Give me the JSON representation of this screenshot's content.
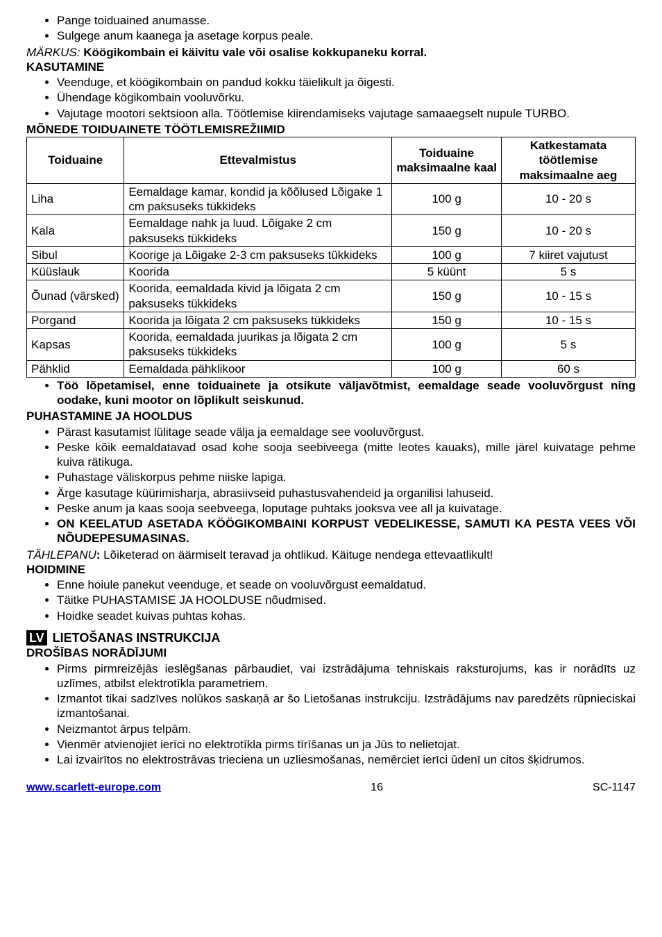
{
  "top_bullets": [
    "Pange toiduained anumasse.",
    "Sulgege anum kaanega ja asetage korpus peale."
  ],
  "markus_line": {
    "prefix": "MÄRKUS:",
    "text": " Köögikombain ei käivitu vale või osalise  kokkupaneku korral."
  },
  "kasutamine_heading": "KASUTAMINE",
  "kasutamine_bullets": [
    "Veenduge, et köögikombain on pandud kokku täielikult ja õigesti.",
    "Ühendage kögikombain vooluvõrku.",
    "Vajutage mootori sektsioon alla. Töötlemise kiirendamiseks vajutage samaaegselt nupule TURBO."
  ],
  "table_heading": "MÕNEDE TOIDUAINETE TÖÖTLEMISREŽIIMID",
  "table": {
    "headers": [
      "Toiduaine",
      "Ettevalmistus",
      "Toiduaine maksimaalne kaal",
      "Katkestamata töötlemise maksimaalne aeg"
    ],
    "col_widths": [
      "16%",
      "44%",
      "18%",
      "22%"
    ],
    "header_bg": "#ffffff",
    "border_color": "#000000",
    "rows": [
      [
        "Liha",
        "Eemaldage kamar, kondid ja kõõlused Lõigake 1 cm paksuseks tükkideks",
        "100 g",
        "10 - 20 s"
      ],
      [
        "Kala",
        "Eemaldage nahk ja luud. Lõigake 2 cm paksuseks tükkideks",
        "150 g",
        "10 - 20 s"
      ],
      [
        "Sibul",
        "Koorige ja Lõigake 2-3 cm paksuseks tükkideks",
        "100 g",
        "7 kiiret vajutust"
      ],
      [
        "Küüslauk",
        "Koorida",
        "5 küünt",
        "5 s"
      ],
      [
        "Õunad (värsked)",
        "Koorida, eemaldada kivid ja lõigata 2 cm paksuseks tükkideks",
        "150 g",
        "10 - 15 s"
      ],
      [
        "Porgand",
        "Koorida ja lõigata 2 cm paksuseks tükkideks",
        "150 g",
        "10 - 15 s"
      ],
      [
        "Kapsas",
        "Koorida, eemaldada juurikas ja lõigata 2 cm paksuseks tükkideks",
        "100 g",
        "5 s"
      ],
      [
        "Pähklid",
        "Eemaldada pähklikoor",
        "100 g",
        "60 s"
      ]
    ]
  },
  "after_table_bullet": "Töö lõpetamisel, enne toiduainete ja otsikute väljavõtmist, eemaldage seade vooluvõrgust ning oodake, kuni mootor on lõplikult seiskunud.",
  "puhastamine_heading": "PUHASTAMINE JA HOOLDUS",
  "puhastamine_bullets": [
    {
      "text": "Pärast kasutamist lülitage seade välja ja eemaldage see vooluvõrgust.",
      "bold": false
    },
    {
      "text": "Peske kõik eemaldatavad osad kohe sooja seebiveega (mitte leotes kauaks), mille järel kuivatage pehme kuiva rätikuga.",
      "bold": false
    },
    {
      "text": "Puhastage väliskorpus pehme niiske lapiga.",
      "bold": false
    },
    {
      "text": "Ärge kasutage küürimisharja, abrasiivseid puhastusvahendeid ja organilisi lahuseid.",
      "bold": false
    },
    {
      "text": "Peske anum ja kaas sooja seebveega, loputage puhtaks jooksva vee all ja kuivatage.",
      "bold": false
    },
    {
      "text": "ON KEELATUD ASETADA KÖÖGIKOMBAINI KORPUST  VEDELIKESSE, SAMUTI KA PESTA VEES VÕI NÕUDEPESUMASINAS.",
      "bold": true
    }
  ],
  "tahlepanu_line": {
    "prefix": "TÄHLEPANU",
    "text": " Lõiketerad on äärmiselt teravad ja ohtlikud. Käituge nendega ettevaatlikult!"
  },
  "hoidmine_heading": "HOIDMINE",
  "hoidmine_bullets": [
    "Enne hoiule panekut veenduge, et seade on vooluvõrgust eemaldatud.",
    "Täitke PUHASTAMISE JA HOOLDUSE nõudmised.",
    "Hoidke seadet kuivas puhtas kohas."
  ],
  "lv_badge": "LV",
  "lv_title": "LIETOŠANAS INSTRUKCIJA",
  "drosibas_heading": "DROŠĪBAS NORĀDĪJUMI",
  "drosibas_bullets": [
    "Pirms pirmreizējās ieslēgšanas pārbaudiet, vai izstrādājuma tehniskais raksturojums, kas ir norādīts uz uzlīmes, atbilst elektrotīkla parametriem.",
    "Izmantot tikai sadzīves nolūkos saskaņā ar šo Lietošanas instrukciju. Izstrādājums nav paredzēts rūpnieciskai izmantošanai.",
    "Neizmantot ārpus telpām.",
    "Vienmēr atvienojiet ierīci no elektrotīkla pirms tīrīšanas un ja Jūs to nelietojat.",
    "Lai izvairītos no elektrostrāvas trieciena un uzliesmošanas, nemērciet ierīci ūdenī un citos šķidrumos."
  ],
  "footer": {
    "url": "www.scarlett-europe.com",
    "page": "16",
    "code": "SC-1147"
  }
}
